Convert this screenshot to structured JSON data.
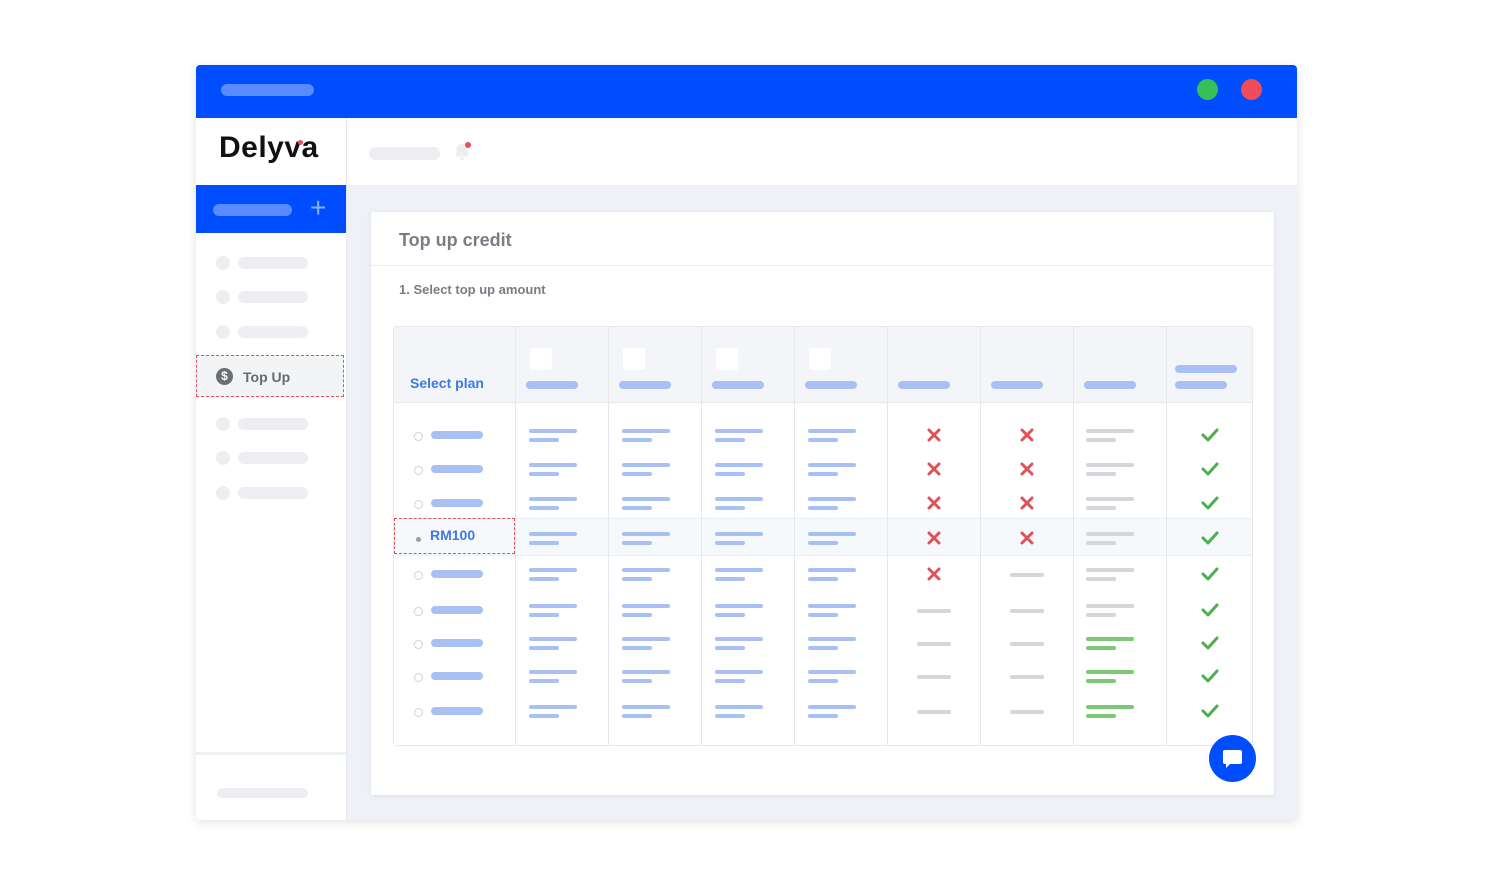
{
  "brand": {
    "logo_text": "Delyva"
  },
  "sidebar": {
    "active_item": {
      "label": "Top Up",
      "icon": "dollar-circle-icon",
      "icon_glyph": "$"
    }
  },
  "card": {
    "title": "Top up credit",
    "step_label": "1. Select top up amount"
  },
  "table": {
    "header_first_col": "Select plan",
    "selected_plan_label": "RM100",
    "rows": [
      {
        "col5": "x",
        "col6": "x",
        "col7": "grey",
        "col8": "check"
      },
      {
        "col5": "x",
        "col6": "x",
        "col7": "grey",
        "col8": "check"
      },
      {
        "col5": "x",
        "col6": "x",
        "col7": "grey",
        "col8": "check"
      },
      {
        "col5": "x",
        "col6": "x",
        "col7": "grey",
        "col8": "check"
      },
      {
        "col5": "x",
        "col6": "dash",
        "col7": "grey",
        "col8": "check"
      },
      {
        "col5": "dash",
        "col6": "dash",
        "col7": "grey",
        "col8": "check"
      },
      {
        "col5": "dash",
        "col6": "dash",
        "col7": "green",
        "col8": "check"
      },
      {
        "col5": "dash",
        "col6": "dash",
        "col7": "green",
        "col8": "check"
      },
      {
        "col5": "dash",
        "col6": "dash",
        "col7": "green",
        "col8": "check"
      }
    ]
  },
  "colors": {
    "brand_blue": "#004cff",
    "link_blue": "#3d78e8",
    "danger_red": "#e0525a",
    "success_green": "#4caf50",
    "window_green": "#35c15a",
    "window_red": "#f14c5a"
  }
}
